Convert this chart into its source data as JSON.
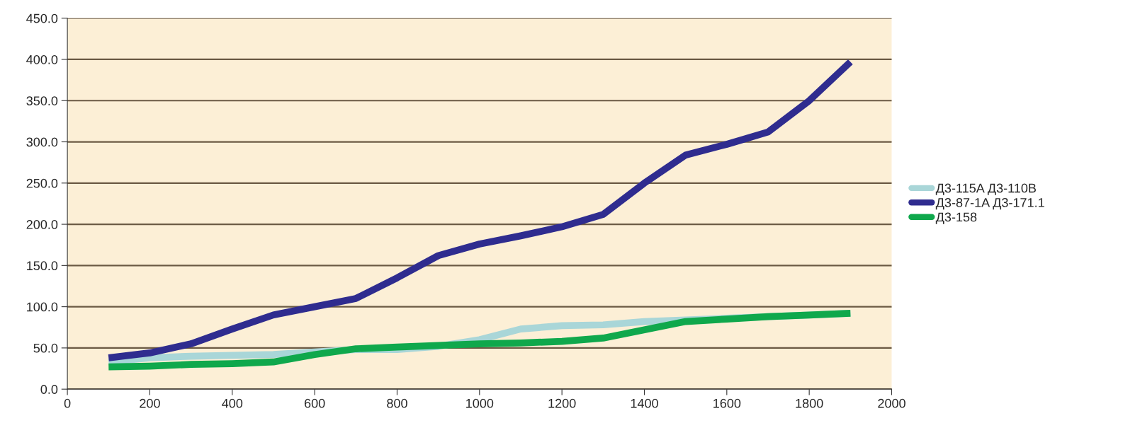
{
  "chart_data": {
    "type": "line",
    "x": [
      100,
      200,
      300,
      400,
      500,
      600,
      700,
      800,
      900,
      1000,
      1100,
      1200,
      1300,
      1400,
      1500,
      1600,
      1700,
      1800,
      1900
    ],
    "series": [
      {
        "name": "Д3-115A Д3-110B",
        "color": "#a9d6d8",
        "values": [
          33,
          38,
          40,
          41,
          42,
          45,
          48,
          48,
          52,
          60,
          73,
          77,
          78,
          82,
          84,
          86,
          88,
          90,
          92
        ]
      },
      {
        "name": "Д3-87-1A Д3-171.1",
        "color": "#2f2c8f",
        "values": [
          38,
          44,
          55,
          73,
          90,
          100,
          110,
          135,
          162,
          176,
          186,
          197,
          212,
          250,
          284,
          297,
          312,
          350,
          397
        ]
      },
      {
        "name": "Д3-158",
        "color": "#0fa84c",
        "values": [
          27,
          28,
          30,
          31,
          33,
          42,
          49,
          51,
          53,
          55,
          56,
          58,
          62,
          72,
          82,
          85,
          88,
          90,
          92
        ]
      }
    ],
    "xlim": [
      0,
      2000
    ],
    "xticks": [
      0,
      200,
      400,
      600,
      800,
      1000,
      1200,
      1400,
      1600,
      1800,
      2000
    ],
    "ylim": [
      0,
      450
    ],
    "yticks": [
      {
        "value": 0,
        "label": "0.0"
      },
      {
        "value": 50,
        "label": "50.0"
      },
      {
        "value": 100,
        "label": "100.0"
      },
      {
        "value": 150,
        "label": "150.0"
      },
      {
        "value": 200,
        "label": "200.0"
      },
      {
        "value": 250,
        "label": "250.0"
      },
      {
        "value": 300,
        "label": "300.0"
      },
      {
        "value": 350,
        "label": "350.0"
      },
      {
        "value": 400,
        "label": "400.0"
      },
      {
        "value": 450,
        "label": "450.0"
      }
    ],
    "grid": "y",
    "legend": "right",
    "marker": "none",
    "line_style": "solid"
  }
}
